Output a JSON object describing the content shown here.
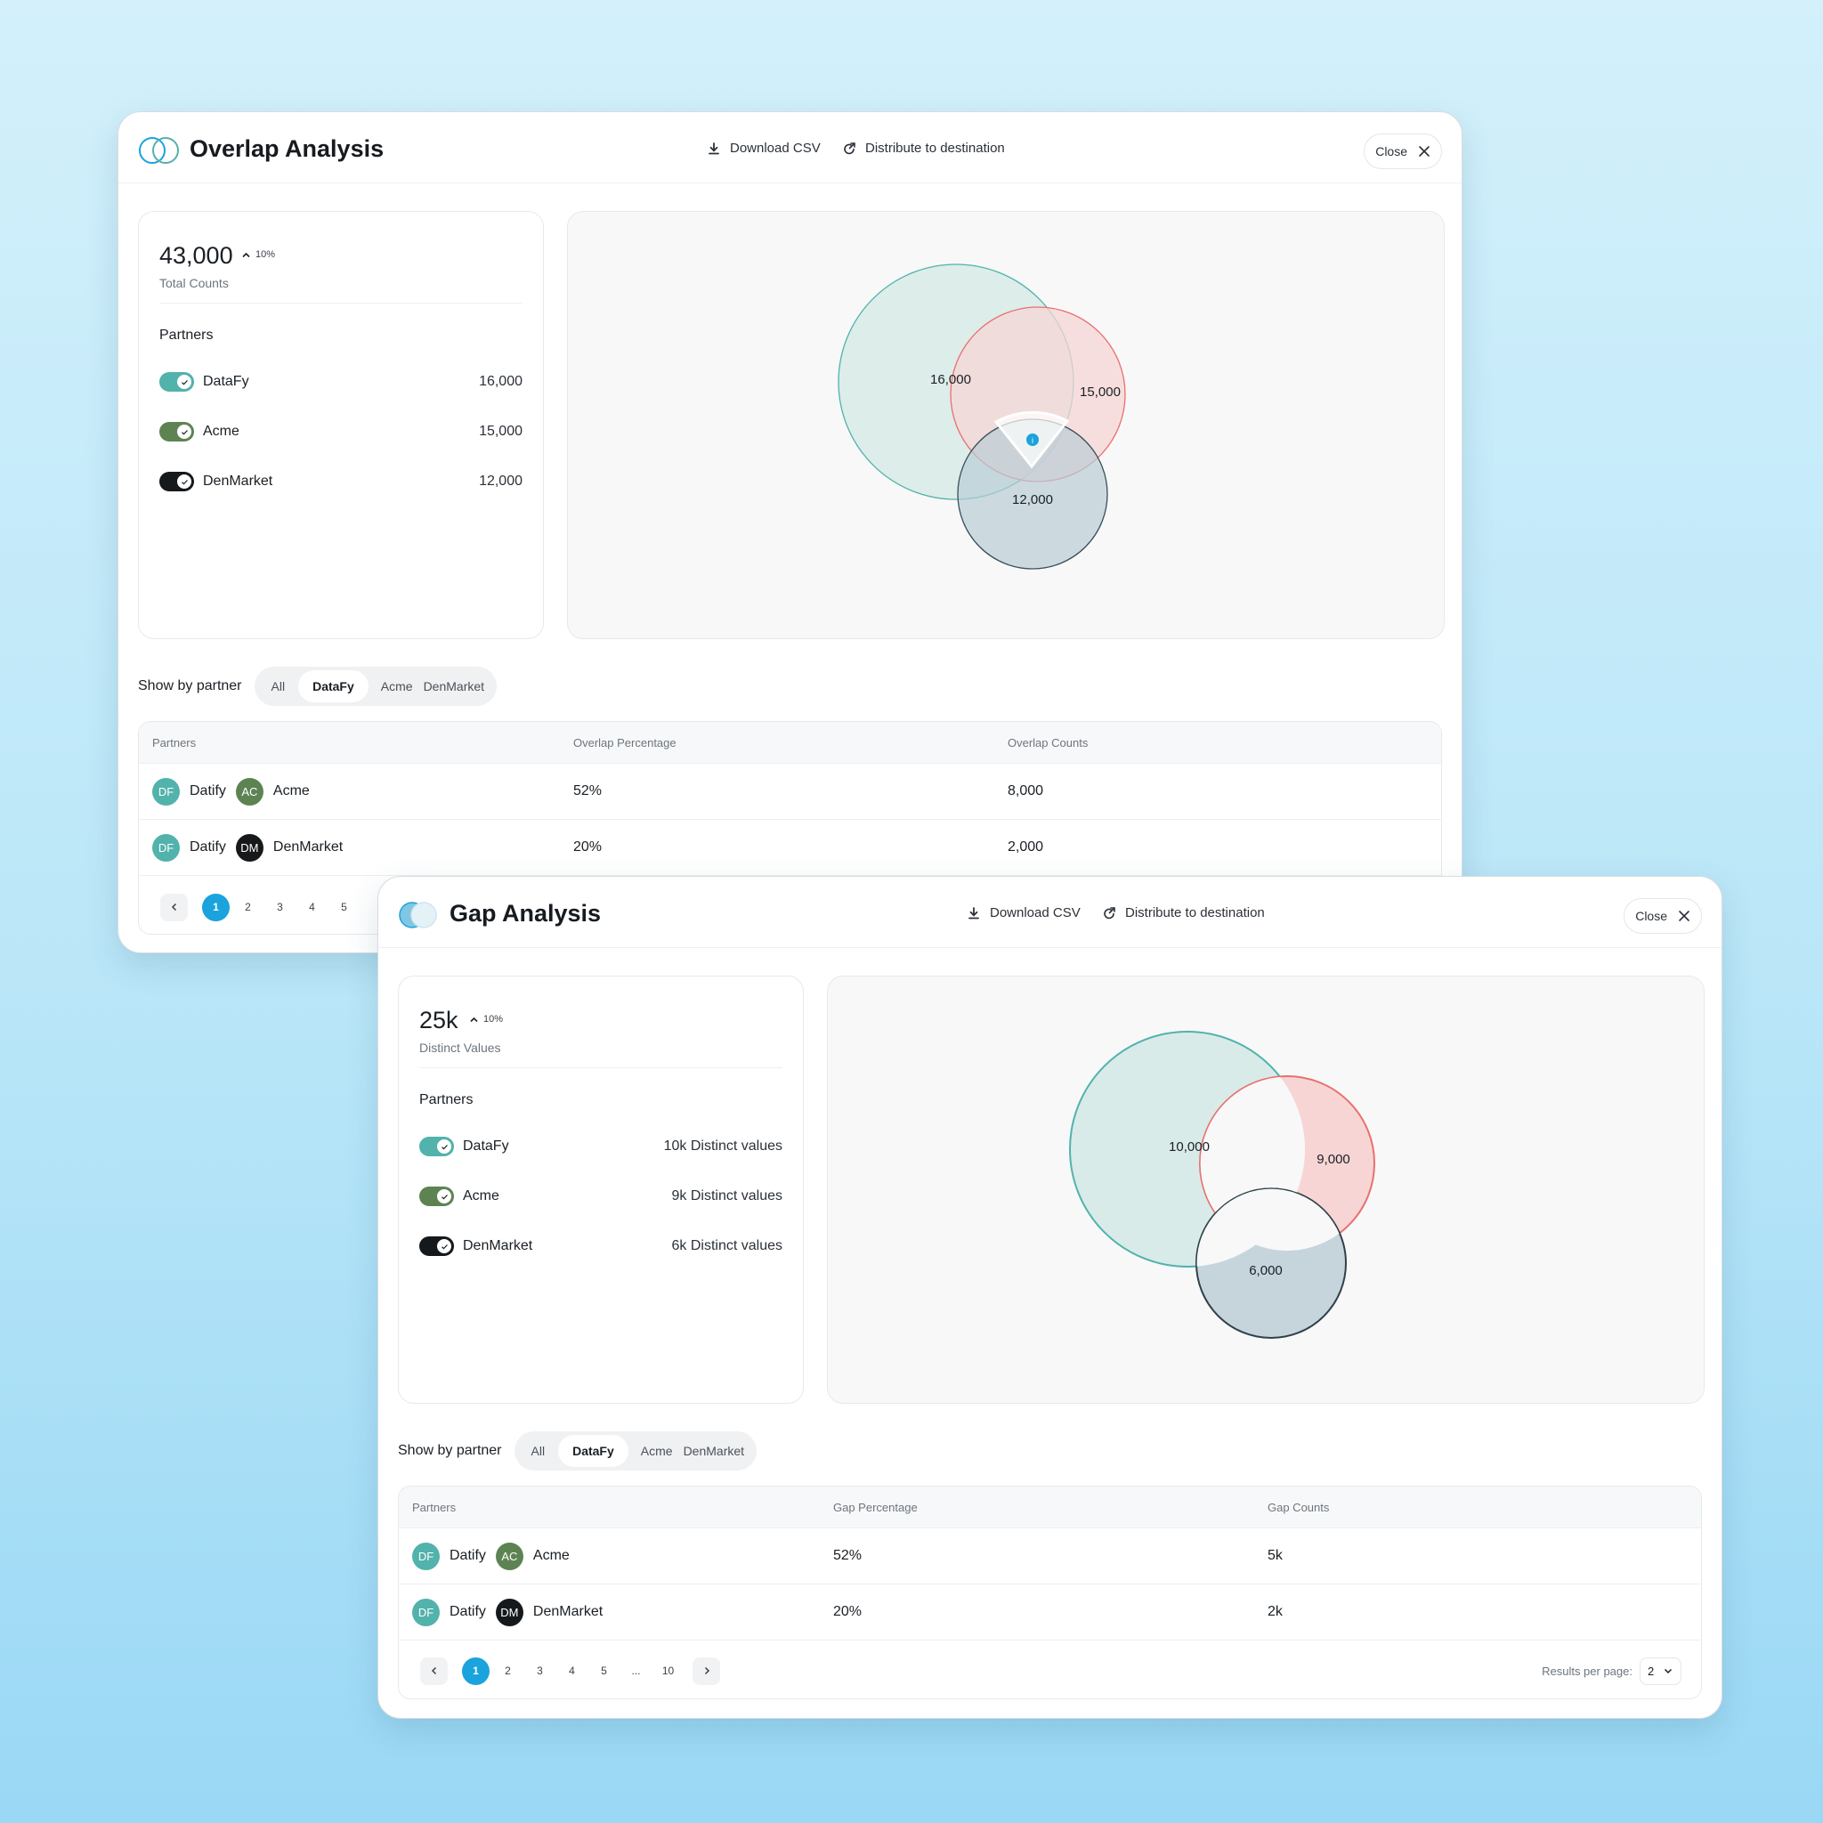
{
  "overlap": {
    "title": "Overlap Analysis",
    "download": "Download CSV",
    "distribute": "Distribute to destination",
    "close": "Close",
    "total_value": "43,000",
    "trend": "10%",
    "total_label": "Total Counts",
    "partners_title": "Partners",
    "partners": [
      {
        "name": "DataFy",
        "value": "16,000",
        "color": "#52b2ac"
      },
      {
        "name": "Acme",
        "value": "15,000",
        "color": "#5e8353"
      },
      {
        "name": "DenMarket",
        "value": "12,000",
        "color": "#16191c"
      }
    ],
    "venn_labels": [
      "16,000",
      "15,000",
      "12,000"
    ],
    "show_by_partner": "Show by partner",
    "filters": [
      "All",
      "DataFy",
      "Acme",
      "DenMarket"
    ],
    "active_filter": "DataFy",
    "columns": [
      "Partners",
      "Overlap Percentage",
      "Overlap Counts"
    ],
    "rows": [
      {
        "a_initials": "DF",
        "a_name": "Datify",
        "b_initials": "AC",
        "b_name": "Acme",
        "pct": "52%",
        "count": "8,000"
      },
      {
        "a_initials": "DF",
        "a_name": "Datify",
        "b_initials": "DM",
        "b_name": "DenMarket",
        "pct": "20%",
        "count": "2,000"
      }
    ],
    "pages": [
      "1",
      "2",
      "3",
      "4",
      "5"
    ]
  },
  "gap": {
    "title": "Gap Analysis",
    "download": "Download CSV",
    "distribute": "Distribute to destination",
    "close": "Close",
    "total_value": "25k",
    "trend": "10%",
    "total_label": "Distinct Values",
    "partners_title": "Partners",
    "partners": [
      {
        "name": "DataFy",
        "value": "10k Distinct values",
        "color": "#52b2ac"
      },
      {
        "name": "Acme",
        "value": "9k Distinct values",
        "color": "#5e8353"
      },
      {
        "name": "DenMarket",
        "value": "6k Distinct values",
        "color": "#16191c"
      }
    ],
    "venn_labels": [
      "10,000",
      "9,000",
      "6,000"
    ],
    "show_by_partner": "Show by partner",
    "filters": [
      "All",
      "DataFy",
      "Acme",
      "DenMarket"
    ],
    "active_filter": "DataFy",
    "columns": [
      "Partners",
      "Gap Percentage",
      "Gap Counts"
    ],
    "rows": [
      {
        "a_initials": "DF",
        "a_name": "Datify",
        "b_initials": "AC",
        "b_name": "Acme",
        "pct": "52%",
        "count": "5k"
      },
      {
        "a_initials": "DF",
        "a_name": "Datify",
        "b_initials": "DM",
        "b_name": "DenMarket",
        "pct": "20%",
        "count": "2k"
      }
    ],
    "pages": [
      "1",
      "2",
      "3",
      "4",
      "5",
      "...",
      "10"
    ],
    "results_per_page_label": "Results per page:",
    "results_per_page_value": "2"
  },
  "colors": {
    "datafy": "#52b2ac",
    "acme": "#5e8353",
    "denmarket": "#16191c",
    "accent": "#1aa3dc",
    "venn_teal_fill": "#d8ebe8",
    "venn_red_fill": "#f7d5d5",
    "venn_slate_fill": "#c6d5dc"
  }
}
